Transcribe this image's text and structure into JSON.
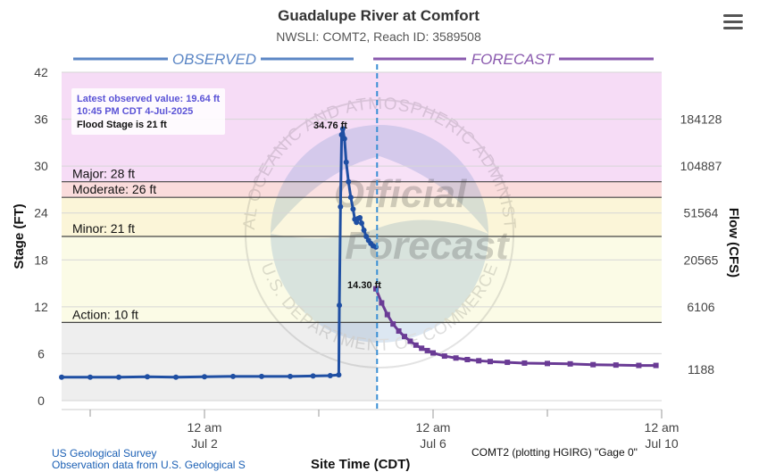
{
  "header": {
    "title": "Guadalupe River at Comfort",
    "subtitle": "NWSLI: COMT2, Reach ID: 3589508"
  },
  "menu": {
    "icon": "hamburger-menu-icon"
  },
  "legend": {
    "observed_label": "OBSERVED",
    "forecast_label": "FORECAST"
  },
  "info_box": {
    "latest": "Latest observed value: 19.64 ft",
    "time": "10:45 PM CDT 4-Jul-2025",
    "flood": "Flood Stage is 21 ft"
  },
  "annotations": {
    "peak": "34.76 ft",
    "forecast_start": "14.30 ft"
  },
  "watermark": {
    "line1": "Official",
    "line2": "Forecast",
    "arc_top": "NATIONAL OCEANIC AND ATMOSPHERIC ADMINISTRATION",
    "arc_bottom": "U.S. DEPARTMENT OF COMMERCE"
  },
  "footer": {
    "credit": "US Geological Survey",
    "credit2": "Observation data from U.S. Geological S",
    "plot_note": "COMT2 (plotting HGIRG) \"Gage 0\"",
    "x_title": "Site Time (CDT)"
  },
  "colors": {
    "observed": "#1f4fa3",
    "forecast": "#6a3b95",
    "major_band": "#f6dcf6",
    "moderate_band": "#fadcdc",
    "minor_band": "#fbf5d8",
    "action_band": "#fbfbe6",
    "normal_band": "#eeeeee",
    "now_line": "#3a8fd4"
  },
  "chart_data": {
    "type": "line",
    "ylabel": "Stage (FT)",
    "y2label": "Flow (CFS)",
    "ylim": [
      0,
      42
    ],
    "yticks": [
      0,
      6,
      12,
      18,
      24,
      30,
      36,
      42
    ],
    "y2ticks": [
      {
        "stage": 4,
        "label": "1188"
      },
      {
        "stage": 12,
        "label": "6106"
      },
      {
        "stage": 18,
        "label": "20565"
      },
      {
        "stage": 24,
        "label": "51564"
      },
      {
        "stage": 30,
        "label": "104887"
      },
      {
        "stage": 36,
        "label": "184128"
      }
    ],
    "x_unit": "days since Jun 30 12 am",
    "xlim": [
      -0.5,
      10.0
    ],
    "xticks": [
      {
        "x": 2,
        "line1": "12 am",
        "line2": "Jul 2"
      },
      {
        "x": 6,
        "line1": "12 am",
        "line2": "Jul 6"
      },
      {
        "x": 10,
        "line1": "12 am",
        "line2": "Jul 10"
      }
    ],
    "minor_xticks": [
      0,
      4,
      8
    ],
    "thresholds": [
      {
        "name": "Action",
        "value": 10,
        "label": "Action: 10 ft"
      },
      {
        "name": "Minor",
        "value": 21,
        "label": "Minor: 21 ft"
      },
      {
        "name": "Moderate",
        "value": 26,
        "label": "Moderate: 26 ft"
      },
      {
        "name": "Major",
        "value": 28,
        "label": "Major: 28 ft"
      }
    ],
    "now_x": 5.02,
    "series": [
      {
        "name": "Observed",
        "x": [
          -0.5,
          0.0,
          0.5,
          1.0,
          1.5,
          2.0,
          2.5,
          3.0,
          3.5,
          3.9,
          4.2,
          4.35,
          4.36,
          4.38,
          4.4,
          4.42,
          4.45,
          4.48,
          4.52,
          4.56,
          4.6,
          4.63,
          4.66,
          4.69,
          4.72,
          4.75,
          4.79,
          4.83,
          4.87,
          4.91,
          4.95,
          5.0
        ],
        "y": [
          3.0,
          3.0,
          3.0,
          3.05,
          3.0,
          3.05,
          3.1,
          3.1,
          3.1,
          3.15,
          3.2,
          3.3,
          12.2,
          24.8,
          34.0,
          34.76,
          33.5,
          30.5,
          28.0,
          26.0,
          24.5,
          23.2,
          22.8,
          23.3,
          23.4,
          22.7,
          21.8,
          21.0,
          20.5,
          20.1,
          19.8,
          19.64
        ]
      },
      {
        "name": "Forecast",
        "x": [
          5.0,
          5.1,
          5.2,
          5.3,
          5.4,
          5.5,
          5.6,
          5.7,
          5.8,
          5.9,
          6.0,
          6.2,
          6.4,
          6.6,
          6.8,
          7.0,
          7.3,
          7.6,
          8.0,
          8.4,
          8.8,
          9.2,
          9.6,
          9.9
        ],
        "y": [
          14.3,
          12.5,
          11.0,
          9.8,
          8.9,
          8.2,
          7.6,
          7.1,
          6.7,
          6.4,
          6.1,
          5.7,
          5.45,
          5.25,
          5.1,
          5.0,
          4.9,
          4.8,
          4.75,
          4.7,
          4.6,
          4.55,
          4.5,
          4.5
        ]
      }
    ]
  }
}
